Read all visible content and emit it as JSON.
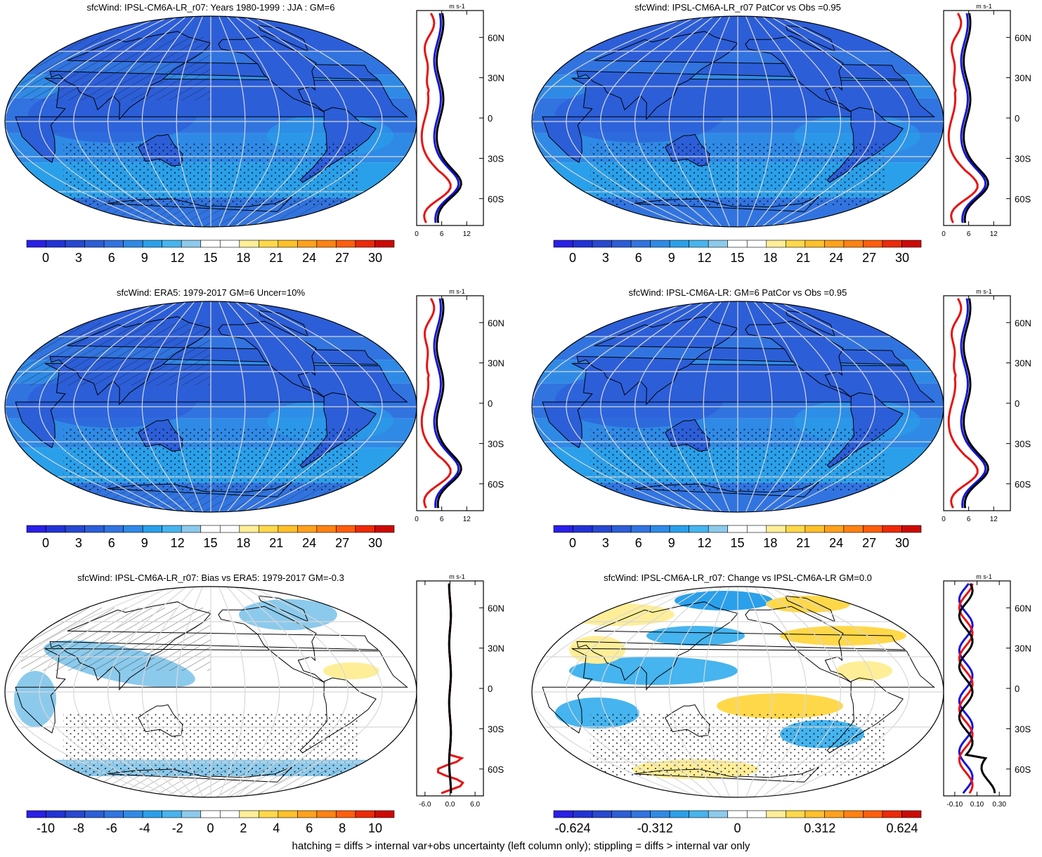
{
  "panels": [
    {
      "id": "p1",
      "title": "sfcWind: IPSL-CM6A-LR_r07: Years 1980-1999 : JJA : GM=6",
      "kind": "mean",
      "hatching": true,
      "stippling": true,
      "colorbar": {
        "ticks": [
          "0",
          "3",
          "6",
          "9",
          "12",
          "15",
          "18",
          "21",
          "24",
          "27",
          "30"
        ]
      },
      "profile": {
        "unit": "m s-1",
        "xticks": [
          "0",
          "6",
          "12"
        ],
        "xlim": [
          0,
          16
        ],
        "yticks": [
          "60N",
          "30N",
          "0",
          "30S",
          "60S"
        ]
      }
    },
    {
      "id": "p2",
      "title": "sfcWind: IPSL-CM6A-LR_r07 PatCor vs Obs =0.95",
      "kind": "mean",
      "hatching": false,
      "stippling": true,
      "colorbar": {
        "ticks": [
          "0",
          "3",
          "6",
          "9",
          "12",
          "15",
          "18",
          "21",
          "24",
          "27",
          "30"
        ]
      },
      "profile": {
        "unit": "m s-1",
        "xticks": [
          "0",
          "6",
          "12"
        ],
        "xlim": [
          0,
          16
        ],
        "yticks": [
          "60N",
          "30N",
          "0",
          "30S",
          "60S"
        ]
      }
    },
    {
      "id": "p3",
      "title": "sfcWind: ERA5: 1979-2017 GM=6 Uncer=10%",
      "kind": "mean",
      "hatching": true,
      "stippling": true,
      "colorbar": {
        "ticks": [
          "0",
          "3",
          "6",
          "9",
          "12",
          "15",
          "18",
          "21",
          "24",
          "27",
          "30"
        ]
      },
      "profile": {
        "unit": "m s-1",
        "xticks": [
          "0",
          "6",
          "12"
        ],
        "xlim": [
          0,
          16
        ],
        "yticks": [
          "60N",
          "30N",
          "0",
          "30S",
          "60S"
        ]
      }
    },
    {
      "id": "p4",
      "title": "sfcWind: IPSL-CM6A-LR: GM=6 PatCor vs Obs =0.95",
      "kind": "mean",
      "hatching": false,
      "stippling": true,
      "colorbar": {
        "ticks": [
          "0",
          "3",
          "6",
          "9",
          "12",
          "15",
          "18",
          "21",
          "24",
          "27",
          "30"
        ]
      },
      "profile": {
        "unit": "m s-1",
        "xticks": [
          "0",
          "6",
          "12"
        ],
        "xlim": [
          0,
          16
        ],
        "yticks": [
          "60N",
          "30N",
          "0",
          "30S",
          "60S"
        ]
      }
    },
    {
      "id": "p5",
      "title": "sfcWind: IPSL-CM6A-LR_r07: Bias vs ERA5: 1979-2017 GM=-0.3",
      "kind": "bias",
      "hatching": true,
      "stippling": true,
      "colorbar": {
        "ticks": [
          "-10",
          "-8",
          "-6",
          "-4",
          "-2",
          "0",
          "2",
          "4",
          "6",
          "8",
          "10"
        ]
      },
      "profile": {
        "unit": "m s-1",
        "xticks": [
          "-6.0",
          "0.0",
          "6.0"
        ],
        "xlim": [
          -8,
          8
        ],
        "yticks": [
          "60N",
          "30N",
          "0",
          "30S",
          "60S"
        ]
      }
    },
    {
      "id": "p6",
      "title": "sfcWind: IPSL-CM6A-LR_r07: Change vs IPSL-CM6A-LR GM=0.0",
      "kind": "change",
      "hatching": false,
      "stippling": true,
      "colorbar": {
        "ticks": [
          "-0.624",
          "-0.312",
          "0",
          "0.312",
          "0.624"
        ]
      },
      "profile": {
        "unit": "m s-1",
        "xticks": [
          "-0.10",
          "0.10",
          "0.30"
        ],
        "xlim": [
          -0.2,
          0.4
        ],
        "yticks": [
          "60N",
          "30N",
          "0",
          "30S",
          "60S"
        ]
      }
    }
  ],
  "palette": [
    "#2a1fe6",
    "#2233d6",
    "#2748d0",
    "#2c5ed8",
    "#3174e0",
    "#2f8ae6",
    "#2aa0ea",
    "#46b4ee",
    "#8ccaec",
    "#ffffff",
    "#ffffff",
    "#ffee98",
    "#ffd84a",
    "#ffc02a",
    "#ffa11c",
    "#ff8212",
    "#ff5e0c",
    "#ec2a08",
    "#cc0a05"
  ],
  "footnote": "hatching = diffs > internal var+obs uncertainty (left column only); stippling = diffs > internal var only"
}
